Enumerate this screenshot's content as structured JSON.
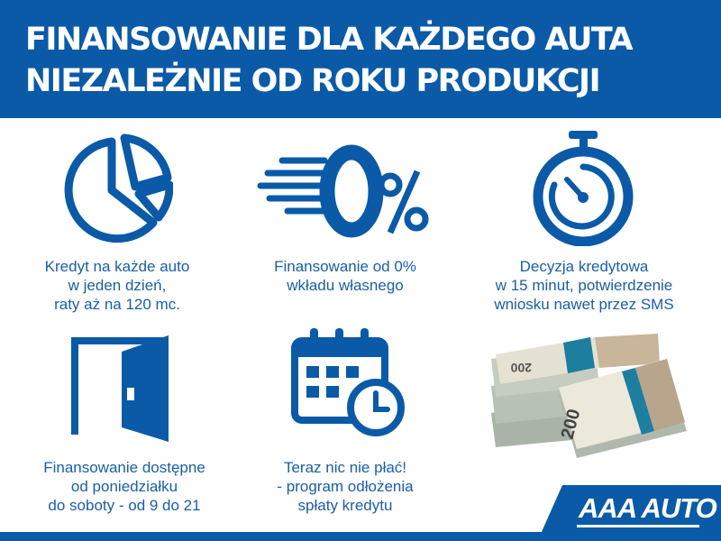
{
  "header": {
    "line1": "FINANSOWANIE DLA KAŻDEGO AUTA",
    "line2": "NIEZALEŻNIE OD ROKU PRODUKCJI"
  },
  "features": [
    {
      "icon": "pie-chart-icon",
      "lines": [
        "Kredyt na każde auto",
        "w jeden dzień,",
        "raty aż na 120 mc."
      ]
    },
    {
      "icon": "zero-percent-icon",
      "lines": [
        "Finansowanie od 0%",
        "wkładu własnego"
      ]
    },
    {
      "icon": "stopwatch-icon",
      "lines": [
        "Decyzja kredytowa",
        "w 15 minut, potwierdzenie",
        "wniosku nawet przez SMS"
      ]
    },
    {
      "icon": "open-door-icon",
      "lines": [
        "Finansowanie dostępne",
        "od poniedziałku",
        "do soboty - od 9 do 21"
      ]
    },
    {
      "icon": "calendar-clock-icon",
      "lines": [
        "Teraz nic nie płać!",
        "- program odłożenia",
        "spłaty kredytu"
      ]
    }
  ],
  "money_image": {
    "icon": "banknote-stack-icon",
    "denomination": "200"
  },
  "logo": {
    "text": "AAA AUTO"
  },
  "colors": {
    "brand_blue": "#0a5aa8",
    "text_blue": "#1a5ea8"
  }
}
